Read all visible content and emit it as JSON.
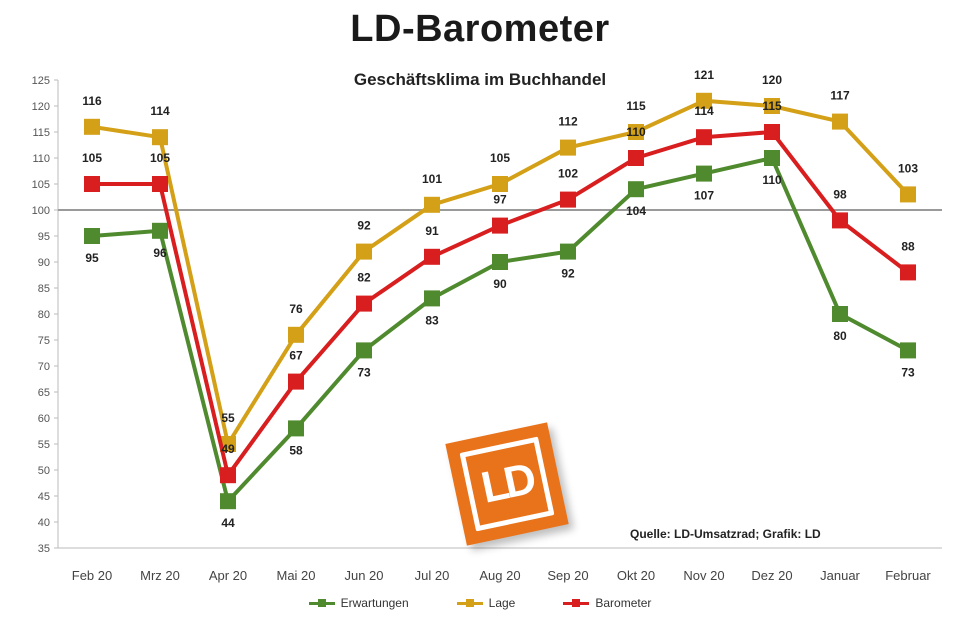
{
  "chart_data": {
    "type": "line",
    "title": "LD-Barometer",
    "subtitle": "Geschäftsklima im Buchhandel",
    "categories": [
      "Feb 20",
      "Mrz 20",
      "Apr 20",
      "Mai 20",
      "Jun 20",
      "Jul 20",
      "Aug 20",
      "Sep 20",
      "Okt 20",
      "Nov 20",
      "Dez 20",
      "Januar",
      "Februar"
    ],
    "ylim": [
      35,
      125
    ],
    "yticks": [
      35,
      40,
      45,
      50,
      55,
      60,
      65,
      70,
      75,
      80,
      85,
      90,
      95,
      100,
      105,
      110,
      115,
      120,
      125
    ],
    "reference_line": 100,
    "grid": false,
    "legend_position": "bottom",
    "series": [
      {
        "name": "Erwartungen",
        "color": "#4f8a2e",
        "values": [
          95,
          96,
          44,
          58,
          73,
          83,
          90,
          92,
          104,
          107,
          110,
          80,
          73
        ]
      },
      {
        "name": "Lage",
        "color": "#d4a017",
        "values": [
          116,
          114,
          55,
          76,
          92,
          101,
          105,
          112,
          115,
          121,
          120,
          117,
          103
        ]
      },
      {
        "name": "Barometer",
        "color": "#d81e1e",
        "values": [
          105,
          105,
          49,
          67,
          82,
          91,
          97,
          102,
          110,
          114,
          115,
          98,
          88
        ]
      }
    ],
    "annotation": "Quelle: LD-Umsatzrad; Grafik: LD"
  },
  "logo": {
    "text": "LD",
    "color": "#e8731a"
  }
}
